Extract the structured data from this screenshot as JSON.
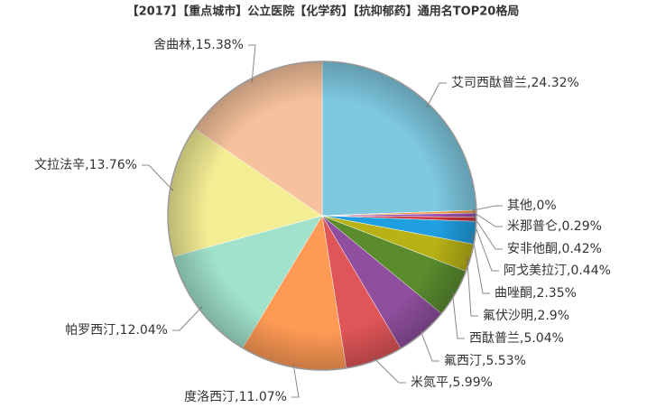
{
  "chart_data": {
    "type": "pie",
    "title": "【2017】【重点城市】公立医院【化学药】【抗抑郁药】通用名TOP20格局",
    "values": [
      24.32,
      0,
      0.29,
      0.42,
      0.44,
      2.35,
      2.9,
      5.04,
      5.53,
      5.99,
      11.07,
      12.04,
      13.76,
      15.38
    ],
    "value_labels": [
      "艾司西酞普兰,24.32%",
      "其他,0%",
      "米那普仑,0.29%",
      "安非他酮,0.42%",
      "阿戈美拉汀,0.44%",
      "曲唑酮,2.35%",
      "氟伏沙明,2.9%",
      "西酞普兰,5.04%",
      "氟西汀,5.53%",
      "米氮平,5.99%",
      "度洛西汀,11.07%",
      "帕罗西汀,12.04%",
      "文拉法辛,13.76%",
      "舍曲林,15.38%"
    ],
    "colors": [
      "#7ec8e0",
      "#f7c25e",
      "#f09a3a",
      "#9b4fb0",
      "#c8323a",
      "#1f9ee0",
      "#b8b216",
      "#5a8c2e",
      "#8f4f9e",
      "#e05558",
      "#ff9a55",
      "#a0e2cc",
      "#f3ed94",
      "#f6c19c"
    ]
  }
}
